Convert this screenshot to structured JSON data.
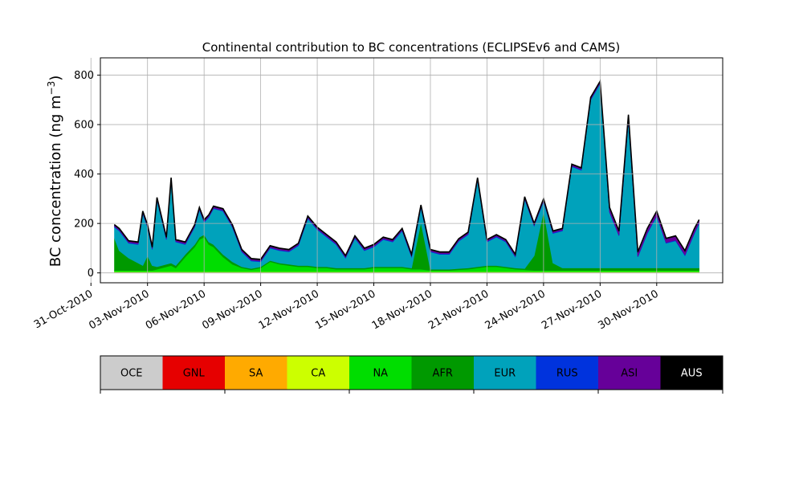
{
  "chart_data": {
    "type": "area",
    "stacked": true,
    "title": "Continental contribution to BC concentrations (ECLIPSEv6 and CAMS)",
    "ylabel_main": "BC concentration (ng m",
    "ylabel_sup": "−3",
    "ylabel_close": ")",
    "xlabel": "",
    "xlim": [
      "2010-10-31T12:00",
      "2010-12-03T12:00"
    ],
    "ylim": [
      -40,
      870
    ],
    "grid": true,
    "yticks": [
      0,
      200,
      400,
      600,
      800
    ],
    "xticks": [
      {
        "date": "2010-10-31",
        "label": "31-Oct-2010"
      },
      {
        "date": "2010-11-03",
        "label": "03-Nov-2010"
      },
      {
        "date": "2010-11-06",
        "label": "06-Nov-2010"
      },
      {
        "date": "2010-11-09",
        "label": "09-Nov-2010"
      },
      {
        "date": "2010-11-12",
        "label": "12-Nov-2010"
      },
      {
        "date": "2010-11-15",
        "label": "15-Nov-2010"
      },
      {
        "date": "2010-11-18",
        "label": "18-Nov-2010"
      },
      {
        "date": "2010-11-21",
        "label": "21-Nov-2010"
      },
      {
        "date": "2010-11-24",
        "label": "24-Nov-2010"
      },
      {
        "date": "2010-11-27",
        "label": "27-Nov-2010"
      },
      {
        "date": "2010-11-30",
        "label": "30-Nov-2010"
      }
    ],
    "x": [
      "2010-11-01T06:00",
      "2010-11-01T12:00",
      "2010-11-02T00:00",
      "2010-11-02T12:00",
      "2010-11-02T18:00",
      "2010-11-03T00:00",
      "2010-11-03T06:00",
      "2010-11-03T12:00",
      "2010-11-04T00:00",
      "2010-11-04T06:00",
      "2010-11-04T12:00",
      "2010-11-05T00:00",
      "2010-11-05T12:00",
      "2010-11-05T18:00",
      "2010-11-06T00:00",
      "2010-11-06T06:00",
      "2010-11-06T12:00",
      "2010-11-07T00:00",
      "2010-11-07T12:00",
      "2010-11-08T00:00",
      "2010-11-08T12:00",
      "2010-11-09T00:00",
      "2010-11-09T12:00",
      "2010-11-10T00:00",
      "2010-11-10T12:00",
      "2010-11-11T00:00",
      "2010-11-11T12:00",
      "2010-11-12T00:00",
      "2010-11-12T12:00",
      "2010-11-13T00:00",
      "2010-11-13T12:00",
      "2010-11-14T00:00",
      "2010-11-14T12:00",
      "2010-11-15T00:00",
      "2010-11-15T12:00",
      "2010-11-16T00:00",
      "2010-11-16T12:00",
      "2010-11-17T00:00",
      "2010-11-17T12:00",
      "2010-11-18T00:00",
      "2010-11-18T12:00",
      "2010-11-19T00:00",
      "2010-11-19T12:00",
      "2010-11-20T00:00",
      "2010-11-20T12:00",
      "2010-11-21T00:00",
      "2010-11-21T12:00",
      "2010-11-22T00:00",
      "2010-11-22T12:00",
      "2010-11-23T00:00",
      "2010-11-23T12:00",
      "2010-11-24T00:00",
      "2010-11-24T12:00",
      "2010-11-25T00:00",
      "2010-11-25T12:00",
      "2010-11-26T00:00",
      "2010-11-26T12:00",
      "2010-11-27T00:00",
      "2010-11-27T12:00",
      "2010-11-28T00:00",
      "2010-11-28T12:00",
      "2010-11-29T00:00",
      "2010-11-29T12:00",
      "2010-11-30T00:00",
      "2010-11-30T12:00",
      "2010-12-01T00:00",
      "2010-12-01T12:00",
      "2010-12-02T00:00",
      "2010-12-02T06:00"
    ],
    "series": [
      {
        "name": "OCE",
        "color": "#cccccc",
        "values": [
          3,
          3,
          3,
          3,
          3,
          3,
          3,
          3,
          3,
          3,
          3,
          3,
          3,
          3,
          3,
          3,
          3,
          3,
          3,
          3,
          3,
          3,
          3,
          3,
          3,
          3,
          3,
          3,
          3,
          3,
          3,
          3,
          3,
          3,
          3,
          3,
          3,
          3,
          3,
          3,
          3,
          3,
          3,
          3,
          3,
          3,
          3,
          3,
          3,
          3,
          3,
          3,
          3,
          3,
          3,
          3,
          3,
          3,
          3,
          3,
          3,
          3,
          3,
          3,
          3,
          3,
          3,
          3,
          3
        ]
      },
      {
        "name": "GNL",
        "color": "#e60000",
        "values": [
          0,
          0,
          0,
          0,
          0,
          0,
          0,
          0,
          0,
          0,
          0,
          0,
          0,
          0,
          0,
          0,
          0,
          0,
          0,
          0,
          0,
          0,
          0,
          0,
          0,
          0,
          0,
          0,
          0,
          0,
          0,
          0,
          0,
          0,
          0,
          0,
          0,
          0,
          0,
          0,
          0,
          0,
          0,
          0,
          0,
          0,
          0,
          0,
          0,
          0,
          0,
          0,
          0,
          0,
          0,
          0,
          0,
          0,
          0,
          0,
          0,
          0,
          0,
          0,
          0,
          0,
          0,
          0,
          0
        ]
      },
      {
        "name": "SA",
        "color": "#ffaa00",
        "values": [
          0,
          0,
          0,
          0,
          0,
          0,
          0,
          0,
          0,
          0,
          0,
          0,
          0,
          0,
          0,
          0,
          0,
          0,
          0,
          0,
          0,
          0,
          0,
          0,
          0,
          0,
          0,
          0,
          0,
          0,
          0,
          0,
          0,
          0,
          0,
          0,
          0,
          0,
          0,
          0,
          0,
          0,
          0,
          0,
          0,
          0,
          0,
          0,
          0,
          0,
          0,
          0,
          0,
          0,
          0,
          0,
          0,
          0,
          0,
          0,
          0,
          0,
          0,
          0,
          0,
          0,
          0,
          0,
          0
        ]
      },
      {
        "name": "CA",
        "color": "#ccff00",
        "values": [
          2,
          2,
          2,
          2,
          2,
          2,
          2,
          2,
          2,
          2,
          2,
          2,
          2,
          2,
          2,
          2,
          2,
          2,
          2,
          2,
          2,
          2,
          2,
          2,
          2,
          2,
          2,
          2,
          2,
          2,
          2,
          2,
          2,
          2,
          2,
          2,
          2,
          2,
          2,
          2,
          2,
          2,
          2,
          2,
          2,
          2,
          2,
          2,
          2,
          2,
          2,
          2,
          2,
          2,
          2,
          2,
          2,
          2,
          2,
          2,
          2,
          2,
          2,
          2,
          2,
          2,
          2,
          2,
          2
        ]
      },
      {
        "name": "NA",
        "color": "#00dd00",
        "values": [
          5,
          5,
          5,
          5,
          5,
          5,
          5,
          10,
          20,
          25,
          15,
          60,
          100,
          130,
          140,
          110,
          100,
          60,
          30,
          15,
          8,
          15,
          40,
          30,
          25,
          20,
          20,
          15,
          15,
          10,
          10,
          10,
          10,
          15,
          15,
          15,
          15,
          10,
          10,
          5,
          5,
          5,
          8,
          10,
          15,
          20,
          20,
          15,
          10,
          8,
          5,
          5,
          5,
          5,
          5,
          5,
          5,
          5,
          5,
          5,
          5,
          5,
          5,
          5,
          5,
          5,
          5,
          5,
          5
        ]
      },
      {
        "name": "AFR",
        "color": "#009900",
        "values": [
          130,
          80,
          50,
          30,
          20,
          60,
          20,
          10,
          10,
          10,
          10,
          10,
          10,
          10,
          10,
          10,
          10,
          10,
          10,
          5,
          5,
          5,
          5,
          5,
          5,
          5,
          5,
          5,
          5,
          5,
          5,
          5,
          5,
          5,
          5,
          5,
          5,
          5,
          190,
          5,
          5,
          5,
          5,
          5,
          5,
          5,
          5,
          5,
          5,
          5,
          60,
          240,
          30,
          10,
          10,
          10,
          10,
          10,
          10,
          10,
          10,
          10,
          10,
          10,
          10,
          10,
          10,
          10,
          10
        ]
      },
      {
        "name": "EUR",
        "color": "#00a2bb",
        "values": [
          45,
          80,
          60,
          75,
          210,
          115,
          65,
          270,
          100,
          335,
          95,
          40,
          70,
          110,
          50,
          100,
          145,
          175,
          140,
          60,
          30,
          20,
          50,
          50,
          50,
          80,
          190,
          150,
          120,
          95,
          40,
          120,
          70,
          80,
          110,
          100,
          145,
          45,
          60,
          70,
          60,
          60,
          110,
          135,
          350,
          95,
          115,
          100,
          45,
          280,
          120,
          40,
          120,
          150,
          410,
          395,
          680,
          745,
          225,
          130,
          600,
          45,
          140,
          210,
          100,
          110,
          50,
          140,
          180
        ]
      },
      {
        "name": "RUS",
        "color": "#0033dd",
        "values": [
          3,
          3,
          3,
          3,
          3,
          3,
          3,
          3,
          3,
          3,
          3,
          3,
          3,
          3,
          3,
          3,
          3,
          3,
          3,
          3,
          3,
          3,
          3,
          3,
          3,
          3,
          3,
          3,
          3,
          3,
          3,
          3,
          3,
          3,
          3,
          3,
          3,
          3,
          3,
          3,
          3,
          3,
          3,
          3,
          3,
          3,
          3,
          3,
          3,
          3,
          3,
          3,
          3,
          3,
          3,
          3,
          3,
          3,
          3,
          3,
          3,
          3,
          3,
          3,
          3,
          3,
          3,
          3,
          3
        ]
      },
      {
        "name": "ASI",
        "color": "#660099",
        "values": [
          5,
          5,
          5,
          5,
          5,
          5,
          5,
          5,
          5,
          5,
          5,
          5,
          5,
          5,
          5,
          5,
          5,
          5,
          5,
          5,
          5,
          5,
          5,
          5,
          5,
          5,
          5,
          5,
          5,
          5,
          5,
          5,
          5,
          5,
          5,
          5,
          5,
          5,
          5,
          5,
          5,
          5,
          5,
          5,
          5,
          5,
          5,
          5,
          5,
          5,
          5,
          5,
          5,
          5,
          5,
          5,
          5,
          5,
          15,
          15,
          15,
          15,
          15,
          15,
          15,
          15,
          15,
          15,
          10
        ]
      },
      {
        "name": "AUS",
        "color": "#000000",
        "values": [
          2,
          2,
          2,
          2,
          2,
          2,
          2,
          2,
          2,
          2,
          2,
          2,
          2,
          2,
          2,
          2,
          2,
          2,
          2,
          2,
          2,
          2,
          2,
          2,
          2,
          2,
          2,
          2,
          2,
          2,
          2,
          2,
          2,
          2,
          2,
          2,
          2,
          2,
          2,
          2,
          2,
          2,
          2,
          2,
          2,
          2,
          2,
          2,
          2,
          2,
          2,
          2,
          2,
          2,
          2,
          2,
          2,
          2,
          2,
          2,
          2,
          2,
          2,
          2,
          2,
          2,
          2,
          2,
          2
        ]
      }
    ]
  }
}
